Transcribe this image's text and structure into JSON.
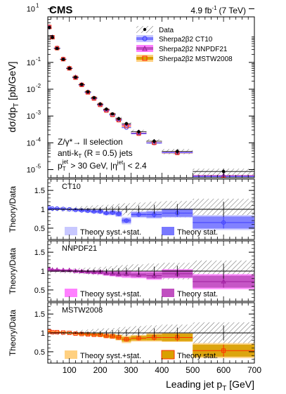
{
  "header": {
    "experiment": "CMS",
    "lumi": "4.9 fb",
    "lumi_sup": "-1",
    "energy": "(7 TeV)"
  },
  "colors": {
    "ct10": "#4040ff",
    "ct10_light": "#c8c8ff",
    "ct10_dark": "#7878ff",
    "nnpdf": "#a020a0",
    "nnpdf_light": "#ff80ff",
    "nnpdf_dark": "#c050c0",
    "mstw": "#ff3000",
    "mstw_light": "#ffd080",
    "mstw_dark": "#d8a000",
    "data": "#000000"
  },
  "legend": {
    "data": "Data",
    "ct10": "Sherpa2β2 CT10",
    "nnpdf": "Sherpa2β2 NNPDF21",
    "mstw": "Sherpa2β2 MSTW2008"
  },
  "selection": {
    "line1": "Z/γ*→ ll selection",
    "line2": "anti-k",
    "line2_sub": "T",
    "line2_rest": " (R = 0.5) jets",
    "line3": "p",
    "line3_sub": "T",
    "line3_sup": "jet",
    "line3_rest": " > 30 GeV, |η",
    "line3_sup2": "jet",
    "line3_end": "| < 2.4"
  },
  "axes": {
    "top_ylabel_main": "dσ/dp",
    "top_ylabel_sub": "T",
    "top_ylabel_unit": " [pb/GeV]",
    "ratio_ylabel": "Theory/Data",
    "xlabel_main": "Leading jet p",
    "xlabel_sub": "T",
    "xlabel_unit": " [GeV]",
    "xticks": [
      "100",
      "200",
      "300",
      "400",
      "500",
      "600",
      "700"
    ],
    "top_yticks": [
      "10",
      "10",
      "10",
      "10",
      "10",
      "10"
    ],
    "top_yexp": [
      "-5",
      "-4",
      "-3",
      "-2",
      "-1",
      "1"
    ],
    "ratio_yticks": [
      "0.5",
      "1",
      "1.5"
    ]
  },
  "panels": [
    {
      "key": "ct10",
      "label": "CT10",
      "syst_label": "Theory syst.+stat.",
      "stat_label": "Theory stat."
    },
    {
      "key": "nnpdf",
      "label": "NNPDF21",
      "syst_label": "Theory syst.+stat.",
      "stat_label": "Theory stat."
    },
    {
      "key": "mstw",
      "label": "MSTW2008",
      "syst_label": "Theory syst.+stat.",
      "stat_label": "Theory stat."
    }
  ],
  "chart_data": {
    "type": "scatter",
    "x_range": [
      30,
      700
    ],
    "top_y_log_range": [
      5e-06,
      5
    ],
    "ratio_y_range": [
      0.2,
      1.8
    ],
    "bins": [
      {
        "lo": 30,
        "hi": 40,
        "data": 2.0,
        "ct10": 2.05,
        "nnpdf": 2.1,
        "mstw": 2.1
      },
      {
        "lo": 40,
        "hi": 50,
        "data": 0.85,
        "ct10": 0.87,
        "nnpdf": 0.87,
        "mstw": 0.87
      },
      {
        "lo": 50,
        "hi": 70,
        "data": 0.33,
        "ct10": 0.34,
        "nnpdf": 0.34,
        "mstw": 0.34
      },
      {
        "lo": 70,
        "hi": 90,
        "data": 0.13,
        "ct10": 0.132,
        "nnpdf": 0.132,
        "mstw": 0.132
      },
      {
        "lo": 90,
        "hi": 110,
        "data": 0.06,
        "ct10": 0.06,
        "nnpdf": 0.061,
        "mstw": 0.06
      },
      {
        "lo": 110,
        "hi": 130,
        "data": 0.028,
        "ct10": 0.027,
        "nnpdf": 0.028,
        "mstw": 0.027
      },
      {
        "lo": 130,
        "hi": 150,
        "data": 0.015,
        "ct10": 0.0145,
        "nnpdf": 0.0148,
        "mstw": 0.0145
      },
      {
        "lo": 150,
        "hi": 170,
        "data": 0.008,
        "ct10": 0.0076,
        "nnpdf": 0.0078,
        "mstw": 0.0076
      },
      {
        "lo": 170,
        "hi": 190,
        "data": 0.0048,
        "ct10": 0.0045,
        "nnpdf": 0.0046,
        "mstw": 0.0045
      },
      {
        "lo": 190,
        "hi": 210,
        "data": 0.0028,
        "ct10": 0.0026,
        "nnpdf": 0.0027,
        "mstw": 0.0026
      },
      {
        "lo": 210,
        "hi": 230,
        "data": 0.0018,
        "ct10": 0.0016,
        "nnpdf": 0.0017,
        "mstw": 0.0016
      },
      {
        "lo": 230,
        "hi": 250,
        "data": 0.0012,
        "ct10": 0.0011,
        "nnpdf": 0.0011,
        "mstw": 0.0011
      },
      {
        "lo": 250,
        "hi": 270,
        "data": 0.0008,
        "ct10": 0.0007,
        "nnpdf": 0.00075,
        "mstw": 0.0007
      },
      {
        "lo": 270,
        "hi": 300,
        "data": 0.00052,
        "ct10": 0.00037,
        "nnpdf": 0.00047,
        "mstw": 0.00042
      },
      {
        "lo": 300,
        "hi": 350,
        "data": 0.00026,
        "ct10": 0.00022,
        "nnpdf": 0.00023,
        "mstw": 0.00022
      },
      {
        "lo": 350,
        "hi": 400,
        "data": 0.000115,
        "ct10": 9.8e-05,
        "nnpdf": 0.0001,
        "mstw": 0.0001
      },
      {
        "lo": 400,
        "hi": 500,
        "data": 4.8e-05,
        "ct10": 4.3e-05,
        "nnpdf": 4.4e-05,
        "mstw": 4.2e-05
      },
      {
        "lo": 500,
        "hi": 700,
        "data": 8.5e-06,
        "ct10": 5.5e-06,
        "nnpdf": 6e-06,
        "mstw": 4.5e-06
      }
    ],
    "ratios": {
      "ct10": [
        1.03,
        1.02,
        1.02,
        1.01,
        1.0,
        0.98,
        0.97,
        0.96,
        0.94,
        0.94,
        0.9,
        0.91,
        0.88,
        0.7,
        0.86,
        0.86,
        0.9,
        0.65
      ],
      "nnpdf": [
        1.05,
        1.03,
        1.03,
        1.02,
        1.02,
        1.0,
        0.99,
        0.98,
        0.97,
        0.97,
        0.94,
        0.93,
        0.92,
        0.92,
        0.9,
        0.88,
        0.93,
        0.72
      ],
      "mstw": [
        1.04,
        1.02,
        1.02,
        1.01,
        1.0,
        0.98,
        0.97,
        0.96,
        0.95,
        0.95,
        0.92,
        0.91,
        0.88,
        0.83,
        0.86,
        0.88,
        0.88,
        0.53
      ]
    },
    "ratio_stat_err": [
      0.02,
      0.02,
      0.02,
      0.02,
      0.02,
      0.02,
      0.03,
      0.03,
      0.03,
      0.04,
      0.04,
      0.05,
      0.06,
      0.06,
      0.06,
      0.08,
      0.1,
      0.16
    ],
    "ratio_syst_err": [
      0.03,
      0.03,
      0.03,
      0.03,
      0.03,
      0.04,
      0.04,
      0.04,
      0.05,
      0.06,
      0.06,
      0.07,
      0.08,
      0.1,
      0.09,
      0.11,
      0.12,
      0.2
    ],
    "data_rel_err": [
      0.05,
      0.05,
      0.05,
      0.06,
      0.06,
      0.07,
      0.08,
      0.09,
      0.1,
      0.11,
      0.12,
      0.13,
      0.15,
      0.16,
      0.18,
      0.2,
      0.22,
      0.28
    ],
    "data_stat_err": [
      0.01,
      0.01,
      0.01,
      0.02,
      0.02,
      0.02,
      0.03,
      0.04,
      0.04,
      0.05,
      0.06,
      0.07,
      0.08,
      0.09,
      0.1,
      0.12,
      0.14,
      0.2
    ]
  }
}
